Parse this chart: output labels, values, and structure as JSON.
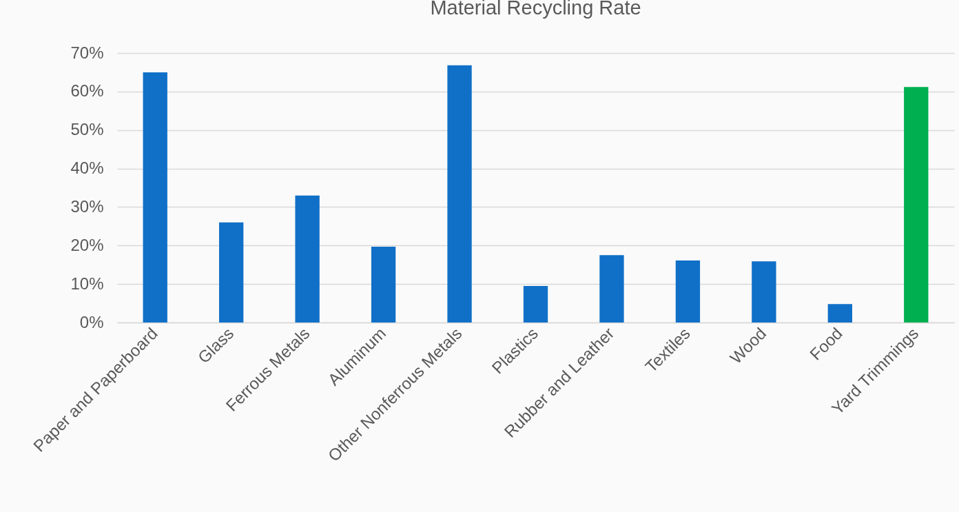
{
  "chart_data": {
    "type": "bar",
    "title": "Material Recycling Rate",
    "categories": [
      "Paper and Paperboard",
      "Glass",
      "Ferrous Metals",
      "Aluminum",
      "Other Nonferrous Metals",
      "Plastics",
      "Rubber and Leather",
      "Textiles",
      "Wood",
      "Food",
      "Yard Trimmings"
    ],
    "values": [
      65.0,
      26.0,
      33.0,
      19.7,
      66.8,
      9.5,
      17.5,
      16.1,
      15.9,
      4.8,
      61.2
    ],
    "colors": [
      "#1070c8",
      "#1070c8",
      "#1070c8",
      "#1070c8",
      "#1070c8",
      "#1070c8",
      "#1070c8",
      "#1070c8",
      "#1070c8",
      "#1070c8",
      "#00b050"
    ],
    "ylim": [
      0,
      70
    ],
    "yticks": [
      {
        "value": 0,
        "label": "0%"
      },
      {
        "value": 10,
        "label": "10%"
      },
      {
        "value": 20,
        "label": "20%"
      },
      {
        "value": 30,
        "label": "30%"
      },
      {
        "value": 40,
        "label": "40%"
      },
      {
        "value": 50,
        "label": "50%"
      },
      {
        "value": 60,
        "label": "60%"
      },
      {
        "value": 70,
        "label": "70%"
      }
    ],
    "grid": "y"
  }
}
